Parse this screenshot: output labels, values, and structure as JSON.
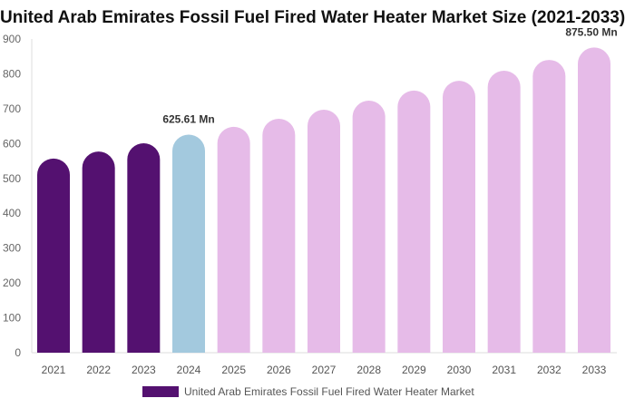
{
  "chart_data": {
    "type": "bar",
    "title": "United Arab Emirates Fossil Fuel Fired Water Heater Market Size (2021-2033)",
    "categories": [
      "2021",
      "2022",
      "2023",
      "2024",
      "2025",
      "2026",
      "2027",
      "2028",
      "2029",
      "2030",
      "2031",
      "2032",
      "2033"
    ],
    "series": [
      {
        "name": "United Arab Emirates Fossil Fuel Fired Water Heater Market",
        "values": [
          557,
          577,
          601,
          625.61,
          648,
          671,
          697,
          723,
          752,
          780,
          809,
          840,
          875.5
        ]
      }
    ],
    "data_labels": {
      "3": "625.61 Mn",
      "12": "875.50 Mn"
    },
    "ylim": [
      0,
      900
    ],
    "yticks": [
      0,
      100,
      200,
      300,
      400,
      500,
      600,
      700,
      800,
      900
    ],
    "grid": false,
    "legend": "bottom",
    "colors": {
      "historical": "#541170",
      "base_year": "#a3c9de",
      "forecast": "#e6bbe8"
    }
  }
}
